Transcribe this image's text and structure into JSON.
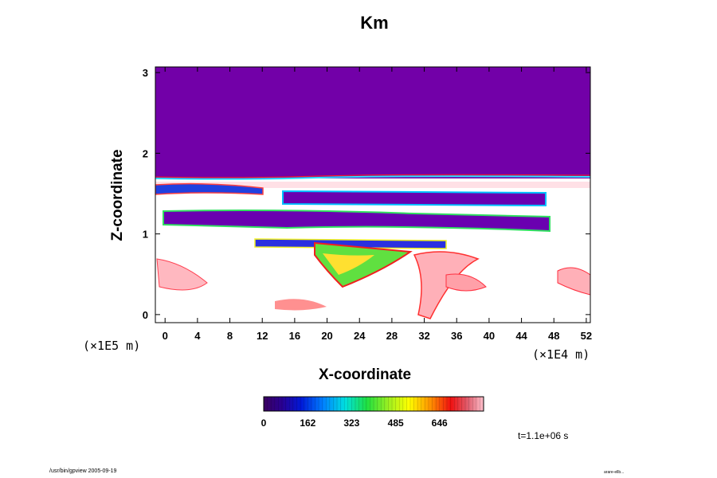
{
  "chart_data": {
    "type": "heatmap",
    "title": "Km",
    "xlabel": "X-coordinate",
    "ylabel": "Z-coordinate",
    "x_scale_label": "(×1E4 m)",
    "y_scale_label": "(×1E5 m)",
    "x_ticks": [
      0,
      4,
      8,
      12,
      16,
      20,
      24,
      28,
      32,
      36,
      40,
      44,
      48,
      52
    ],
    "y_ticks": [
      0,
      1,
      2,
      3
    ],
    "xlim": [
      -1.2,
      52.5
    ],
    "ylim": [
      -0.1,
      3.07
    ],
    "colorbar": {
      "ticks": [
        "0",
        "162",
        "323",
        "485",
        "646"
      ],
      "range": [
        0,
        808
      ],
      "colormap": "rainbow-purple-to-pink"
    },
    "time_label": "t=1.1e+06 s",
    "field_summary": {
      "upper_region_value": 0,
      "upper_region_z_range": [
        1.7,
        3.07
      ],
      "low_value_layers_z": [
        {
          "z": [
            1.38,
            1.52
          ],
          "x": [
            15,
            47
          ]
        },
        {
          "z": [
            1.0,
            1.2
          ],
          "x": [
            -1,
            47
          ]
        }
      ],
      "high_value_region_z": [
        -0.1,
        1.0
      ]
    }
  },
  "footer": {
    "left": "/usr/bin/gpview 2005-09-19",
    "right": "arare-ellb..."
  },
  "colors": {
    "background": "#ffffff",
    "upper_field": "#7200a8",
    "max": "#ffc0c8"
  }
}
